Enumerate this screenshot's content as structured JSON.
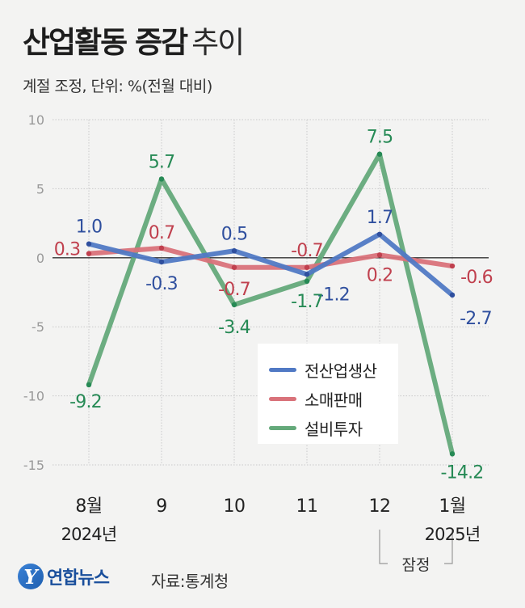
{
  "header": {
    "title_bold": "산업활동 증감",
    "title_light": "추이",
    "subtitle": "계절 조정, 단위: %(전월 대비)"
  },
  "footer": {
    "logo_mark": "Y",
    "logo_text": "연합뉴스",
    "source": "자료:통계청"
  },
  "chart_data": {
    "type": "line",
    "categories": [
      "8월",
      "9",
      "10",
      "11",
      "12",
      "1월"
    ],
    "year_labels": [
      "2024년",
      "",
      "",
      "",
      "",
      "2025년"
    ],
    "provisional_label": "잠정",
    "ylim": [
      -15,
      10
    ],
    "yticks": [
      10,
      5,
      0,
      -5,
      -10,
      -15
    ],
    "grid": true,
    "legend_position": "center-right",
    "series": [
      {
        "name": "전산업생산",
        "color": "#5079c4",
        "values": [
          1.0,
          -0.3,
          0.5,
          -1.2,
          1.7,
          -2.7
        ],
        "labels": [
          "1.0",
          "-0.3",
          "0.5",
          "-1.2",
          "1.7",
          "-2.7"
        ],
        "label_color": "#2f4f9e"
      },
      {
        "name": "소매판매",
        "color": "#d9727a",
        "values": [
          0.3,
          0.7,
          -0.7,
          -0.7,
          0.2,
          -0.6
        ],
        "labels": [
          "0.3",
          "0.7",
          "-0.7",
          "-0.7",
          "0.2",
          "-0.6"
        ],
        "label_color": "#c0404e"
      },
      {
        "name": "설비투자",
        "color": "#64a97a",
        "values": [
          -9.2,
          5.7,
          -3.4,
          -1.7,
          7.5,
          -14.2
        ],
        "labels": [
          "-9.2",
          "5.7",
          "-3.4",
          "-1.7",
          "7.5",
          "-14.2"
        ],
        "label_color": "#268a55"
      }
    ]
  }
}
